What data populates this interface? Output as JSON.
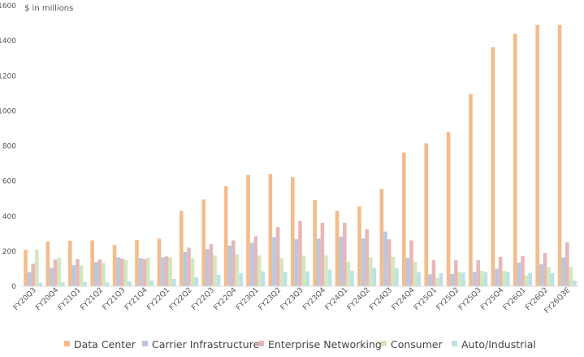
{
  "chart_data": {
    "type": "bar",
    "ylabel": "$ in millions",
    "ylim": [
      0,
      1600
    ],
    "yticks": [
      0,
      200,
      400,
      600,
      800,
      1000,
      1200,
      1400,
      1600
    ],
    "grid": false,
    "legend_position": "bottom",
    "categories": [
      "FY20Q3",
      "FY20Q4",
      "FY21Q1",
      "FY21Q2",
      "FY21Q3",
      "FY21Q4",
      "FY22Q1",
      "FY22Q2",
      "FY22Q3",
      "FY22Q4",
      "FY23Q1",
      "FY23Q2",
      "FY23Q3",
      "FY23Q4",
      "FY24Q1",
      "FY24Q2",
      "FY24Q3",
      "FY24Q4",
      "FY25Q1",
      "FY25Q2",
      "FY25Q3",
      "FY25Q4",
      "FY26Q1",
      "FY26Q2",
      "FY26Q3E"
    ],
    "series": [
      {
        "name": "Data Center",
        "color": "#f4bc8c",
        "values": [
          208,
          255,
          260,
          262,
          235,
          265,
          272,
          430,
          495,
          570,
          635,
          640,
          622,
          492,
          430,
          455,
          555,
          762,
          815,
          880,
          1097,
          1363,
          1440,
          1490,
          1490
        ]
      },
      {
        "name": "Carrier Infrastructure",
        "color": "#b8c8e0",
        "values": [
          80,
          105,
          120,
          138,
          165,
          160,
          165,
          195,
          212,
          232,
          248,
          280,
          268,
          272,
          283,
          272,
          312,
          162,
          68,
          70,
          82,
          100,
          135,
          125,
          165
        ]
      },
      {
        "name": "Enterprise Networking",
        "color": "#e6b8b8",
        "values": [
          128,
          152,
          155,
          153,
          158,
          155,
          170,
          220,
          240,
          262,
          285,
          338,
          372,
          362,
          362,
          325,
          268,
          262,
          148,
          148,
          148,
          168,
          172,
          190,
          250
        ]
      },
      {
        "name": "Consumer",
        "color": "#d5e6bc",
        "values": [
          210,
          162,
          118,
          132,
          150,
          162,
          165,
          160,
          175,
          182,
          175,
          160,
          175,
          175,
          140,
          165,
          168,
          140,
          48,
          82,
          88,
          88,
          62,
          110,
          110
        ]
      },
      {
        "name": "Auto/Industrial",
        "color": "#bde2e6",
        "values": [
          20,
          22,
          25,
          22,
          28,
          32,
          42,
          52,
          65,
          75,
          85,
          82,
          85,
          95,
          88,
          105,
          102,
          80,
          75,
          78,
          80,
          82,
          75,
          75,
          32
        ]
      }
    ]
  }
}
